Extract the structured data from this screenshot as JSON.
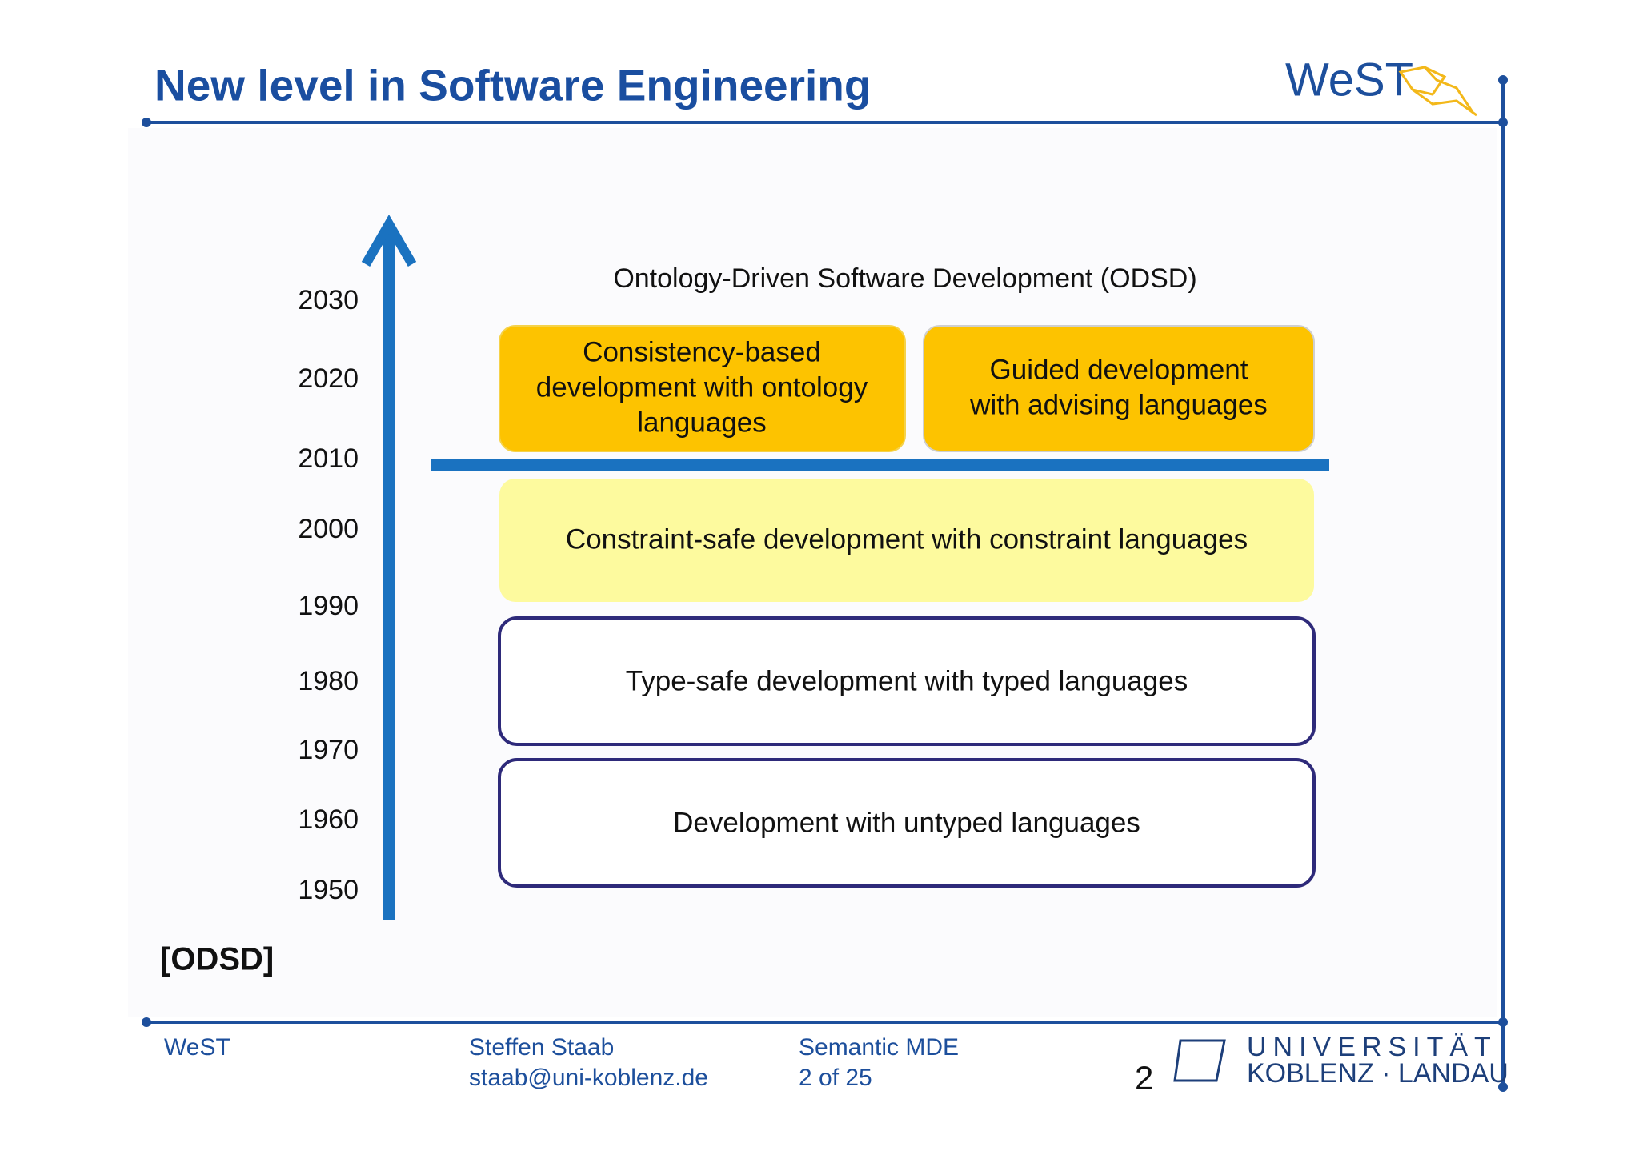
{
  "header": {
    "title": "New level in Software Engineering",
    "logo": "WeST"
  },
  "diagram": {
    "heading": "Ontology-Driven Software Development (ODSD)",
    "years": [
      "2030",
      "2020",
      "2010",
      "2000",
      "1990",
      "1980",
      "1970",
      "1960",
      "1950"
    ],
    "boxes": [
      {
        "lines": [
          "Consistency-based",
          "development with ontology",
          "languages"
        ]
      },
      {
        "lines": [
          "Guided development",
          "with advising languages"
        ]
      },
      {
        "lines": [
          "Constraint-safe development with constraint languages"
        ]
      },
      {
        "lines": [
          "Type-safe development with typed languages"
        ]
      },
      {
        "lines": [
          "Development with untyped languages"
        ]
      }
    ],
    "reference": "[ODSD]"
  },
  "footer": {
    "group": "WeST",
    "author": "Steffen Staab",
    "email": "staab@uni-koblenz.de",
    "talk": "Semantic MDE",
    "pages": "2 of 25",
    "page_number": "2",
    "university": [
      "UNIVERSITÄT",
      "KOBLENZ · LANDAU"
    ]
  }
}
